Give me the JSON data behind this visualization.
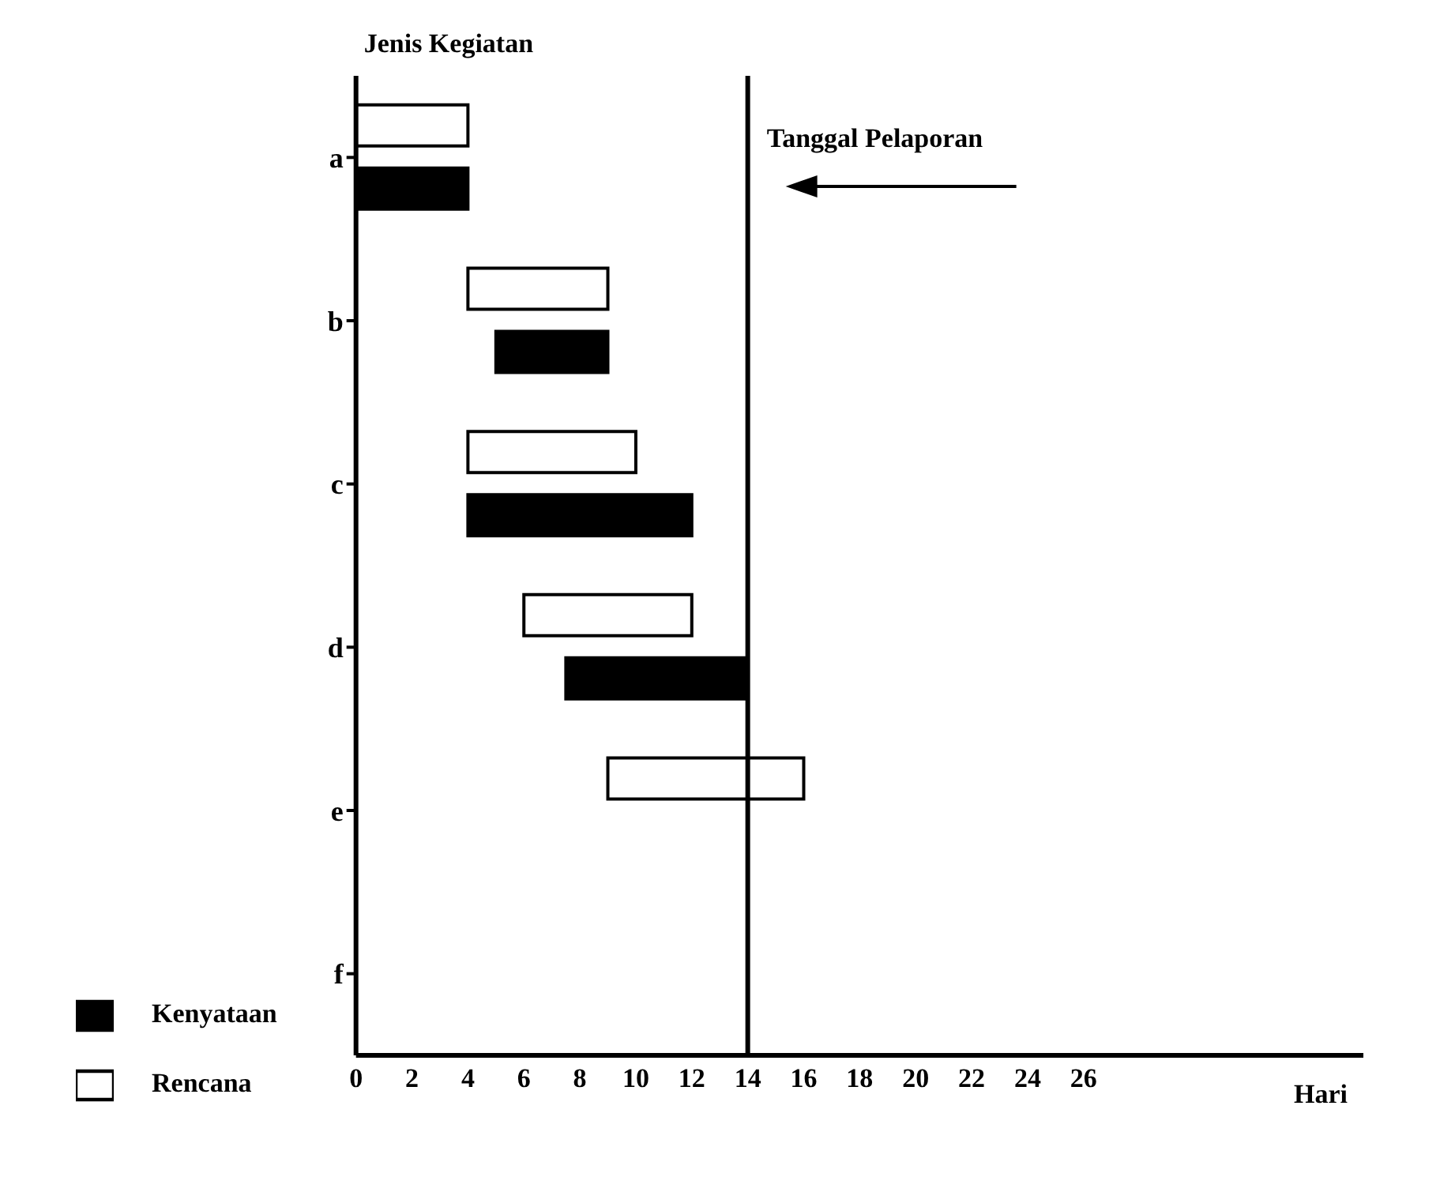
{
  "chart_data": {
    "type": "bar",
    "orientation": "horizontal",
    "ylabel": "Jenis Kegiatan",
    "xlabel": "Hari",
    "categories": [
      "a",
      "b",
      "c",
      "d",
      "e",
      "f"
    ],
    "series": [
      {
        "name": "Rencana",
        "color": "#ffffff",
        "base": [
          0,
          4,
          4,
          6,
          9,
          null
        ],
        "values": [
          4,
          5,
          6,
          6,
          7,
          null
        ]
      },
      {
        "name": "Kenyataan",
        "color": "#000000",
        "base": [
          0,
          5,
          4,
          7.5,
          null,
          null
        ],
        "values": [
          4,
          4,
          8,
          6.5,
          null,
          null
        ]
      }
    ],
    "xlim": [
      0,
      36
    ],
    "xticks": [
      0,
      2,
      4,
      6,
      8,
      10,
      12,
      14,
      16,
      18,
      20,
      22,
      24,
      26
    ],
    "ref_lines": [
      {
        "axis": "x",
        "value": 14,
        "label": "Tanggal Pelaporan",
        "color": "#000000"
      }
    ],
    "grid": false,
    "legend": "bottom left"
  }
}
